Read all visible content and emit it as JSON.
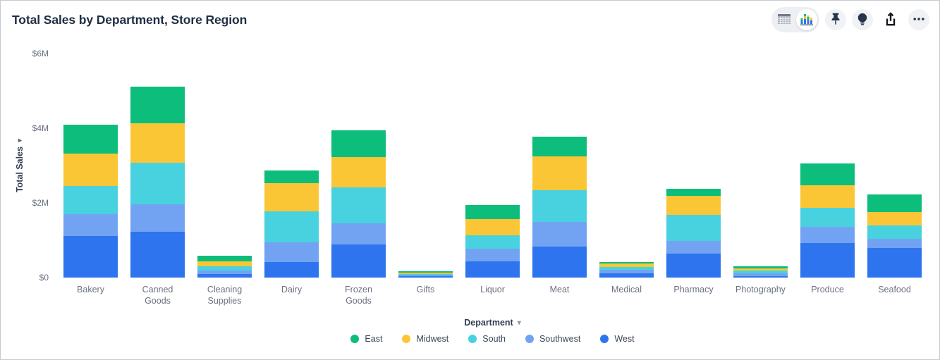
{
  "header": {
    "title": "Total Sales by Department, Store Region"
  },
  "toolbar": {
    "view_toggle": {
      "options": [
        "table",
        "chart"
      ],
      "selected": "chart"
    },
    "buttons": [
      "pin",
      "lightbulb",
      "share",
      "more-options"
    ]
  },
  "icons": {
    "caret_down": "▾"
  },
  "colors": {
    "east": "#0dbd7b",
    "midwest": "#fbc636",
    "south": "#48d1df",
    "southwest": "#72a3f2",
    "west": "#2e74ee"
  },
  "chart_data": {
    "type": "bar",
    "stacked": true,
    "title": "Total Sales by Department, Store Region",
    "xlabel": "Department",
    "ylabel": "Total Sales",
    "unit": "millions USD",
    "ylim_millions": [
      0,
      6
    ],
    "grid": false,
    "legend_position": "bottom",
    "y_ticks": [
      {
        "label": "$6M",
        "value": 6
      },
      {
        "label": "$4M",
        "value": 4
      },
      {
        "label": "$2M",
        "value": 2
      },
      {
        "label": "$0",
        "value": 0
      }
    ],
    "categories": [
      "Bakery",
      "Canned Goods",
      "Cleaning Supplies",
      "Dairy",
      "Frozen Goods",
      "Gifts",
      "Liquor",
      "Meat",
      "Medical",
      "Pharmacy",
      "Photography",
      "Produce",
      "Seafood"
    ],
    "stack_order": "bottom-to-top",
    "series": [
      {
        "name": "West",
        "color": "#2e74ee",
        "values": [
          1.12,
          1.22,
          0.1,
          0.42,
          0.89,
          0.04,
          0.44,
          0.83,
          0.12,
          0.64,
          0.04,
          0.93,
          0.8
        ]
      },
      {
        "name": "Southwest",
        "color": "#72a3f2",
        "values": [
          0.57,
          0.75,
          0.09,
          0.52,
          0.57,
          0.03,
          0.33,
          0.66,
          0.08,
          0.35,
          0.07,
          0.43,
          0.24
        ]
      },
      {
        "name": "South",
        "color": "#48d1df",
        "values": [
          0.76,
          1.1,
          0.11,
          0.84,
          0.96,
          0.03,
          0.37,
          0.85,
          0.09,
          0.69,
          0.08,
          0.5,
          0.36
        ]
      },
      {
        "name": "Midwest",
        "color": "#fbc636",
        "values": [
          0.87,
          1.06,
          0.14,
          0.74,
          0.8,
          0.04,
          0.43,
          0.91,
          0.08,
          0.5,
          0.06,
          0.62,
          0.36
        ]
      },
      {
        "name": "East",
        "color": "#0dbd7b",
        "values": [
          0.77,
          0.98,
          0.14,
          0.35,
          0.73,
          0.03,
          0.38,
          0.52,
          0.05,
          0.2,
          0.06,
          0.57,
          0.47
        ]
      }
    ],
    "legend_order": [
      "East",
      "Midwest",
      "South",
      "Southwest",
      "West"
    ]
  }
}
